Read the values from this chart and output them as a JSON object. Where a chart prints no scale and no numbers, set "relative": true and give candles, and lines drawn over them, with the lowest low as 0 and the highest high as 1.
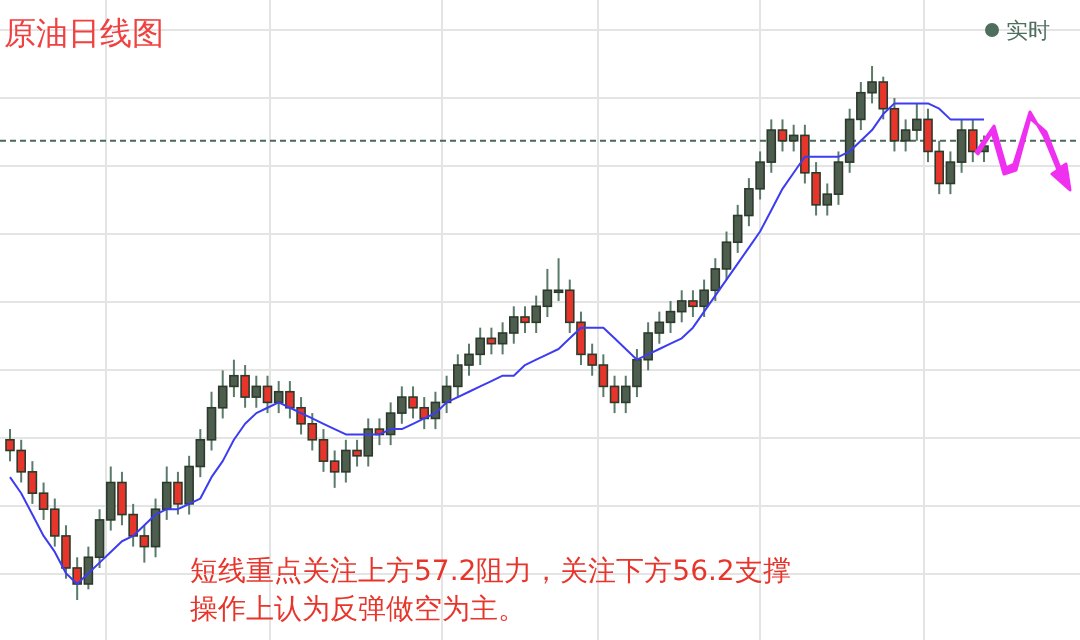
{
  "chart_data": {
    "type": "candlestick",
    "title": "原油日线图",
    "relative": true,
    "grid": true,
    "categories": [
      null,
      null,
      null,
      null,
      null,
      null,
      null,
      null,
      null,
      null,
      null,
      null,
      null,
      null,
      null,
      null,
      null,
      null,
      null,
      null,
      null,
      null,
      null,
      null,
      null,
      null,
      null,
      null,
      null,
      null,
      null,
      null,
      null,
      null,
      null,
      null,
      null,
      null,
      null,
      null,
      null,
      null,
      null,
      null,
      null,
      null,
      null,
      null,
      null,
      null,
      null,
      null,
      null,
      null,
      null,
      null,
      null,
      null,
      null,
      null,
      null,
      null,
      null,
      null,
      null,
      null,
      null,
      null,
      null,
      null,
      null,
      null,
      null,
      null,
      null,
      null,
      null,
      null,
      null,
      null,
      null,
      null,
      null,
      null,
      null,
      null,
      null,
      null
    ],
    "series": [
      {
        "colors": [
          "#e8352b",
          "#e8352b",
          "#e8352b",
          "#e8352b",
          "#e8352b",
          "#e8352b",
          "#e8352b",
          "#4e5e4e",
          "#4e5e4e",
          "#4e5e4e",
          "#e8352b",
          "#e8352b",
          "#e8352b",
          "#4e5e4e",
          "#4e5e4e",
          "#e8352b",
          "#4e5e4e",
          "#4e5e4e",
          "#4e5e4e",
          "#4e5e4e",
          "#4e5e4e",
          "#e8352b",
          "#4e5e4e",
          "#e8352b",
          "#4e5e4e",
          "#e8352b",
          "#e8352b",
          "#e8352b",
          "#e8352b",
          "#e8352b",
          "#4e5e4e",
          "#e8352b",
          "#4e5e4e",
          "#e8352b",
          "#4e5e4e",
          "#4e5e4e",
          "#e8352b",
          "#e8352b",
          "#4e5e4e",
          "#4e5e4e",
          "#4e5e4e",
          "#4e5e4e",
          "#4e5e4e",
          "#e8352b",
          "#4e5e4e",
          "#4e5e4e",
          "#e8352b",
          "#4e5e4e",
          "#4e5e4e",
          "#4e5e4e",
          "#e8352b",
          "#e8352b",
          "#e8352b",
          "#e8352b",
          "#e8352b",
          "#4e5e4e",
          "#4e5e4e",
          "#4e5e4e",
          "#4e5e4e",
          "#4e5e4e",
          "#4e5e4e",
          "#e8352b",
          "#4e5e4e",
          "#4e5e4e",
          "#4e5e4e",
          "#4e5e4e",
          "#4e5e4e",
          "#4e5e4e",
          "#4e5e4e",
          "#e8352b",
          "#4e5e4e",
          "#e8352b",
          "#e8352b",
          "#4e5e4e",
          "#4e5e4e",
          "#4e5e4e",
          "#4e5e4e",
          "#4e5e4e",
          "#e8352b",
          "#e8352b",
          "#4e5e4e",
          "#4e5e4e",
          "#e8352b",
          "#e8352b",
          "#4e5e4e",
          "#4e5e4e",
          "#e8352b",
          "#4e5e4e"
        ],
        "ohlc": [
          [
            0.3,
            0.32,
            0.26,
            0.28
          ],
          [
            0.28,
            0.3,
            0.22,
            0.24
          ],
          [
            0.24,
            0.26,
            0.18,
            0.2
          ],
          [
            0.2,
            0.22,
            0.15,
            0.17
          ],
          [
            0.17,
            0.19,
            0.1,
            0.12
          ],
          [
            0.12,
            0.14,
            0.04,
            0.06
          ],
          [
            0.06,
            0.08,
            0,
            0.03
          ],
          [
            0.03,
            0.1,
            0.02,
            0.08
          ],
          [
            0.08,
            0.17,
            0.06,
            0.15
          ],
          [
            0.15,
            0.25,
            0.13,
            0.22
          ],
          [
            0.22,
            0.24,
            0.14,
            0.16
          ],
          [
            0.16,
            0.18,
            0.1,
            0.12
          ],
          [
            0.12,
            0.14,
            0.07,
            0.1
          ],
          [
            0.1,
            0.19,
            0.08,
            0.17
          ],
          [
            0.17,
            0.25,
            0.15,
            0.22
          ],
          [
            0.22,
            0.24,
            0.16,
            0.18
          ],
          [
            0.18,
            0.27,
            0.16,
            0.25
          ],
          [
            0.25,
            0.32,
            0.23,
            0.3
          ],
          [
            0.3,
            0.39,
            0.28,
            0.36
          ],
          [
            0.36,
            0.43,
            0.34,
            0.4
          ],
          [
            0.4,
            0.45,
            0.38,
            0.42
          ],
          [
            0.42,
            0.44,
            0.36,
            0.38
          ],
          [
            0.38,
            0.42,
            0.36,
            0.4
          ],
          [
            0.4,
            0.42,
            0.35,
            0.37
          ],
          [
            0.37,
            0.41,
            0.35,
            0.39
          ],
          [
            0.39,
            0.41,
            0.34,
            0.36
          ],
          [
            0.36,
            0.38,
            0.31,
            0.33
          ],
          [
            0.33,
            0.35,
            0.28,
            0.3
          ],
          [
            0.3,
            0.32,
            0.24,
            0.26
          ],
          [
            0.26,
            0.28,
            0.21,
            0.24
          ],
          [
            0.24,
            0.3,
            0.22,
            0.28
          ],
          [
            0.28,
            0.3,
            0.25,
            0.27
          ],
          [
            0.27,
            0.34,
            0.25,
            0.32
          ],
          [
            0.32,
            0.34,
            0.29,
            0.31
          ],
          [
            0.31,
            0.37,
            0.29,
            0.35
          ],
          [
            0.35,
            0.4,
            0.33,
            0.38
          ],
          [
            0.38,
            0.4,
            0.34,
            0.36
          ],
          [
            0.36,
            0.38,
            0.32,
            0.34
          ],
          [
            0.34,
            0.39,
            0.32,
            0.37
          ],
          [
            0.37,
            0.42,
            0.35,
            0.4
          ],
          [
            0.4,
            0.46,
            0.38,
            0.44
          ],
          [
            0.44,
            0.48,
            0.42,
            0.46
          ],
          [
            0.46,
            0.51,
            0.44,
            0.49
          ],
          [
            0.49,
            0.51,
            0.46,
            0.48
          ],
          [
            0.48,
            0.52,
            0.46,
            0.5
          ],
          [
            0.5,
            0.55,
            0.48,
            0.53
          ],
          [
            0.53,
            0.55,
            0.5,
            0.52
          ],
          [
            0.52,
            0.57,
            0.5,
            0.55
          ],
          [
            0.55,
            0.62,
            0.53,
            0.58
          ],
          [
            0.58,
            0.64,
            0.56,
            0.58
          ],
          [
            0.58,
            0.6,
            0.5,
            0.52
          ],
          [
            0.52,
            0.54,
            0.44,
            0.46
          ],
          [
            0.46,
            0.48,
            0.42,
            0.44
          ],
          [
            0.44,
            0.46,
            0.38,
            0.4
          ],
          [
            0.4,
            0.42,
            0.35,
            0.37
          ],
          [
            0.37,
            0.42,
            0.35,
            0.4
          ],
          [
            0.4,
            0.47,
            0.38,
            0.45
          ],
          [
            0.45,
            0.52,
            0.43,
            0.5
          ],
          [
            0.5,
            0.54,
            0.48,
            0.52
          ],
          [
            0.52,
            0.56,
            0.5,
            0.54
          ],
          [
            0.54,
            0.58,
            0.52,
            0.56
          ],
          [
            0.56,
            0.58,
            0.53,
            0.55
          ],
          [
            0.55,
            0.6,
            0.53,
            0.58
          ],
          [
            0.58,
            0.64,
            0.56,
            0.62
          ],
          [
            0.62,
            0.69,
            0.6,
            0.67
          ],
          [
            0.67,
            0.74,
            0.65,
            0.72
          ],
          [
            0.72,
            0.79,
            0.7,
            0.77
          ],
          [
            0.77,
            0.84,
            0.75,
            0.82
          ],
          [
            0.82,
            0.9,
            0.8,
            0.88
          ],
          [
            0.88,
            0.9,
            0.84,
            0.86
          ],
          [
            0.86,
            0.89,
            0.84,
            0.87
          ],
          [
            0.87,
            0.89,
            0.78,
            0.8
          ],
          [
            0.8,
            0.82,
            0.72,
            0.74
          ],
          [
            0.74,
            0.78,
            0.72,
            0.76
          ],
          [
            0.76,
            0.84,
            0.74,
            0.82
          ],
          [
            0.82,
            0.92,
            0.8,
            0.9
          ],
          [
            0.9,
            0.97,
            0.88,
            0.95
          ],
          [
            0.95,
            1,
            0.93,
            0.97
          ],
          [
            0.97,
            0.98,
            0.9,
            0.92
          ],
          [
            0.92,
            0.94,
            0.84,
            0.86
          ],
          [
            0.86,
            0.9,
            0.84,
            0.88
          ],
          [
            0.88,
            0.93,
            0.86,
            0.9
          ],
          [
            0.9,
            0.92,
            0.82,
            0.84
          ],
          [
            0.84,
            0.86,
            0.76,
            0.78
          ],
          [
            0.78,
            0.84,
            0.76,
            0.82
          ],
          [
            0.82,
            0.9,
            0.8,
            0.88
          ],
          [
            0.88,
            0.9,
            0.82,
            0.84
          ],
          [
            0.84,
            0.87,
            0.82,
            0.85
          ]
        ]
      },
      {
        "type": "line",
        "color": "#3c3cf0",
        "values": [
          0.23,
          0.2,
          0.16,
          0.12,
          0.09,
          0.05,
          0.03,
          0.05,
          0.07,
          0.09,
          0.11,
          0.12,
          0.14,
          0.16,
          0.17,
          0.17,
          0.18,
          0.19,
          0.23,
          0.26,
          0.3,
          0.33,
          0.35,
          0.36,
          0.37,
          0.36,
          0.35,
          0.34,
          0.33,
          0.32,
          0.31,
          0.31,
          0.31,
          0.31,
          0.32,
          0.32,
          0.33,
          0.34,
          0.35,
          0.37,
          0.38,
          0.39,
          0.4,
          0.41,
          0.42,
          0.42,
          0.44,
          0.45,
          0.46,
          0.47,
          0.49,
          0.51,
          0.51,
          0.51,
          0.49,
          0.47,
          0.45,
          0.46,
          0.47,
          0.48,
          0.49,
          0.51,
          0.54,
          0.57,
          0.6,
          0.63,
          0.66,
          0.69,
          0.73,
          0.77,
          0.8,
          0.83,
          0.83,
          0.83,
          0.83,
          0.84,
          0.86,
          0.88,
          0.91,
          0.93,
          0.93,
          0.93,
          0.93,
          0.92,
          0.9,
          0.9,
          0.9,
          0.9
        ]
      }
    ],
    "ref_lines": [
      {
        "axis": "y",
        "value": 0.86,
        "color": "#4a6a5a",
        "line_style": "dashed"
      }
    ],
    "annotations": [
      "实时",
      "短线重点关注上方57.2阻力，关注下方56.2支撑",
      "操作上认为反弹做空为主。"
    ]
  }
}
